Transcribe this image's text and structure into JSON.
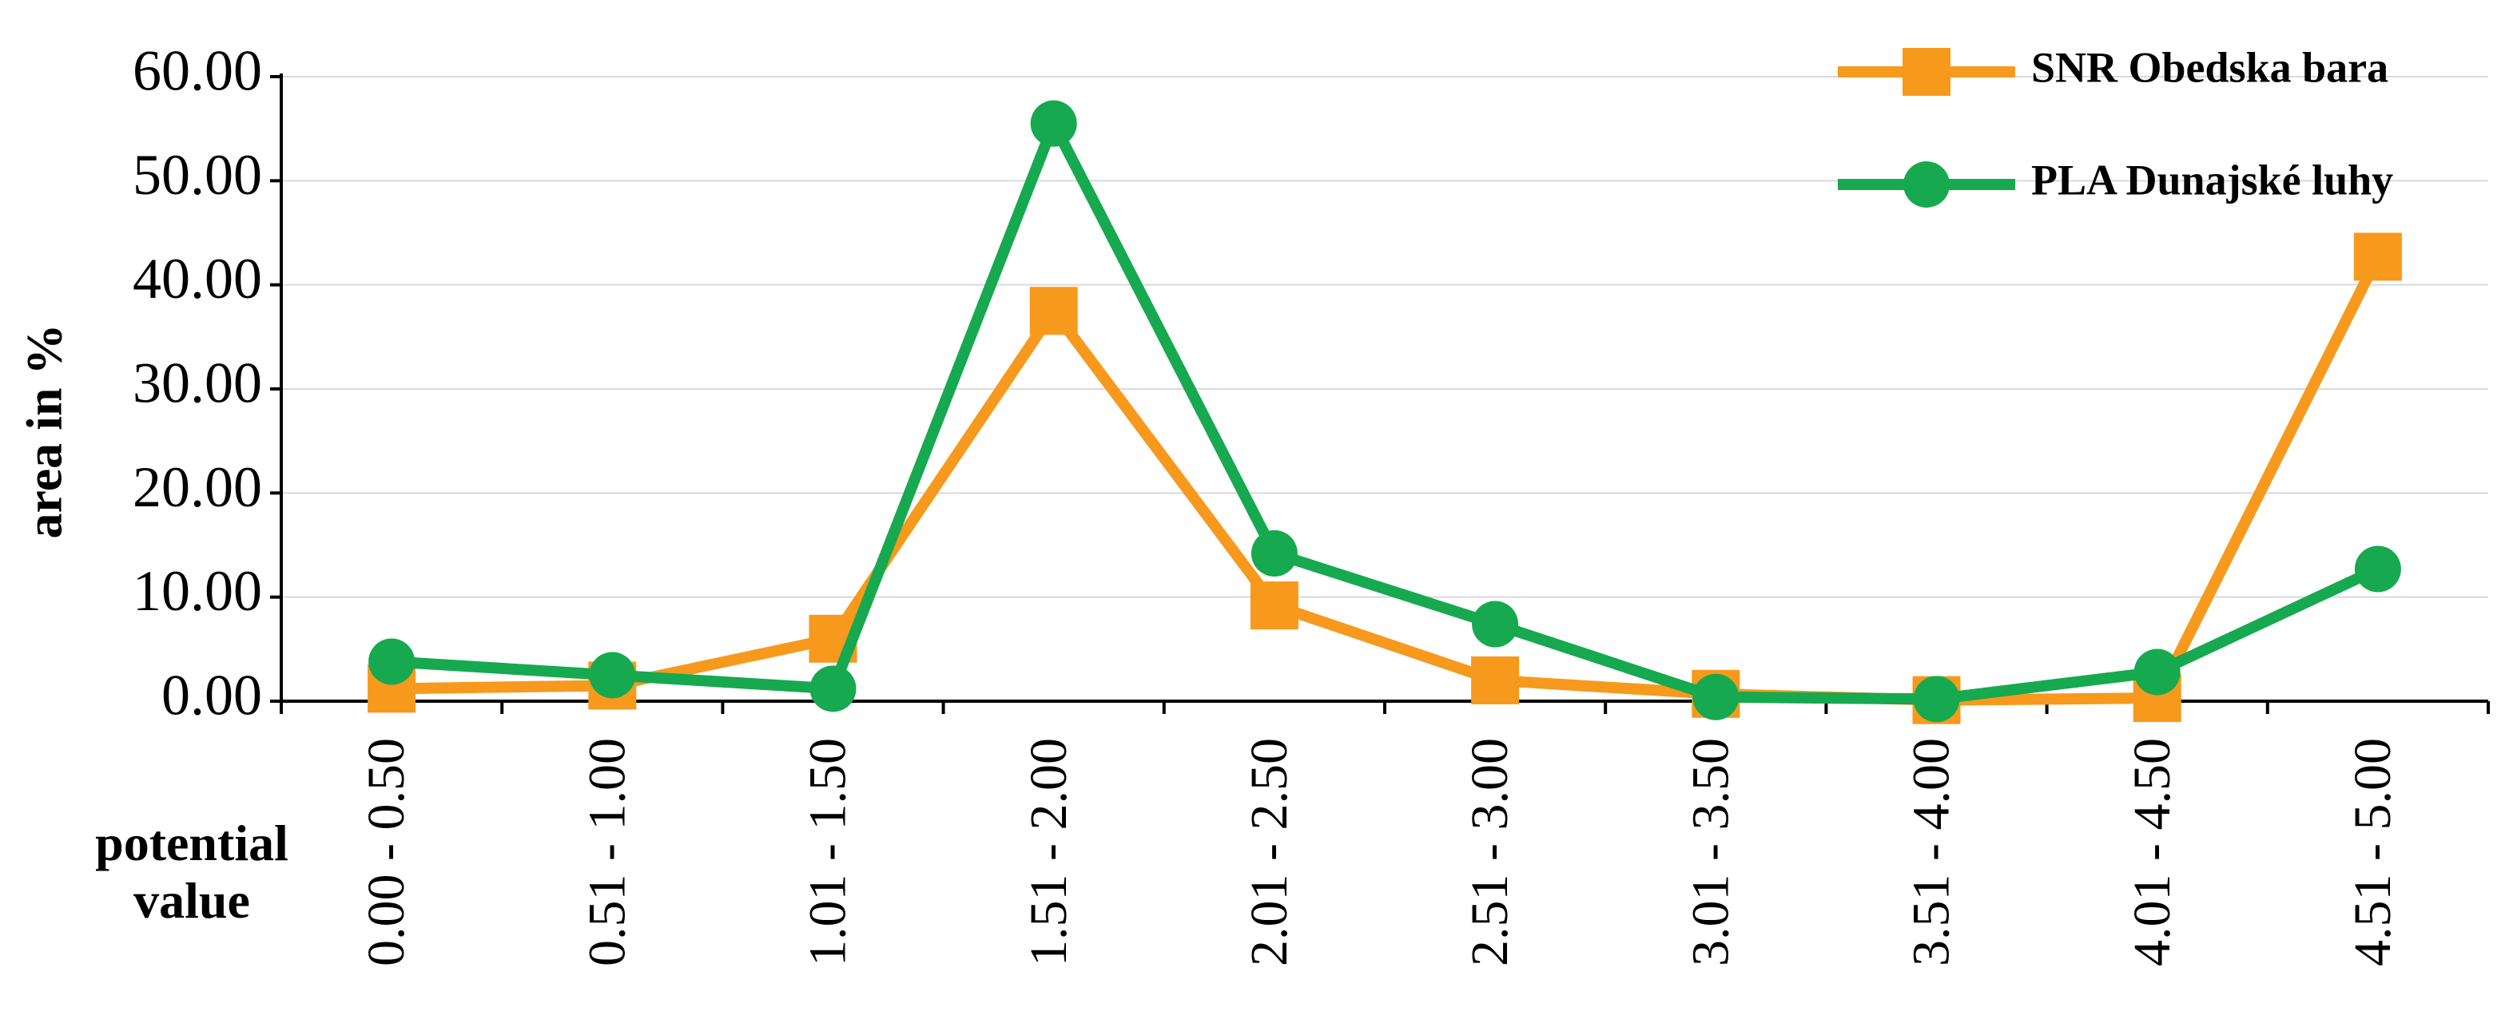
{
  "chart_data": {
    "type": "line",
    "ylabel": "area in %",
    "xlabel": "potential value",
    "categories": [
      "0.00 - 0.50",
      "0.51 - 1.00",
      "1.01 - 1.50",
      "1.51 - 2.00",
      "2.01 - 2.50",
      "2.51 - 3.00",
      "3.01 - 3.50",
      "3.51 - 4.00",
      "4.01 - 4.50",
      "4.51 - 5.00"
    ],
    "series": [
      {
        "name": "SNR Obedska bara",
        "color": "#f7991c",
        "marker": "square",
        "values": [
          1.2,
          1.5,
          6.0,
          37.5,
          9.2,
          2.0,
          0.7,
          0.1,
          0.3,
          42.7
        ]
      },
      {
        "name": "PLA Dunajské luhy",
        "color": "#16a94f",
        "marker": "circle",
        "values": [
          3.8,
          2.5,
          1.2,
          55.5,
          14.2,
          7.4,
          0.4,
          0.2,
          2.8,
          12.7
        ]
      }
    ],
    "ylim": [
      0,
      60
    ],
    "yticks": [
      {
        "value": 0,
        "label": "0.00"
      },
      {
        "value": 10,
        "label": "10.00"
      },
      {
        "value": 20,
        "label": "20.00"
      },
      {
        "value": 30,
        "label": "30.00"
      },
      {
        "value": 40,
        "label": "40.00"
      },
      {
        "value": 50,
        "label": "50.00"
      },
      {
        "value": 60,
        "label": "60.00"
      }
    ],
    "grid": true,
    "legend": "upper right"
  }
}
